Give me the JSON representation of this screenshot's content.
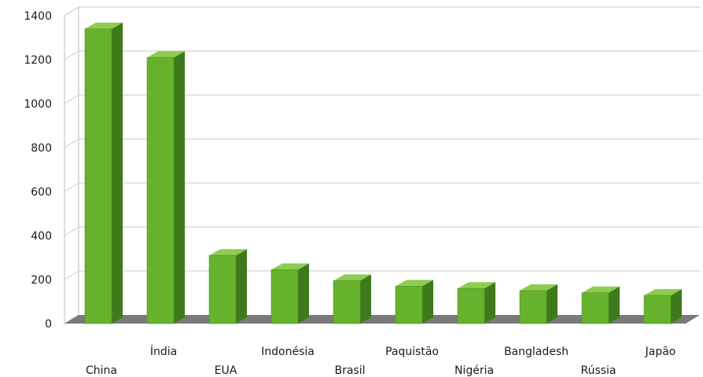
{
  "chart_data": {
    "type": "bar",
    "title": "",
    "xlabel": "",
    "ylabel": "",
    "categories": [
      "China",
      "Índia",
      "EUA",
      "Indonésia",
      "Brasil",
      "Paquistão",
      "Nigéria",
      "Bangladesh",
      "Rússia",
      "Japão"
    ],
    "values": [
      1340,
      1210,
      310,
      245,
      195,
      170,
      160,
      150,
      140,
      128
    ],
    "ylim": [
      0,
      1400
    ],
    "yticks": [
      "0",
      "200",
      "400",
      "600",
      "800",
      "1000",
      "1200",
      "1400"
    ],
    "grid": true,
    "legend": "none",
    "colors": {
      "bar_front": "#66b22d",
      "bar_side": "#3e7a1b",
      "bar_top": "#8ccc4f",
      "floor": "#7a7a7a",
      "grid": "#c8c8c8"
    }
  }
}
